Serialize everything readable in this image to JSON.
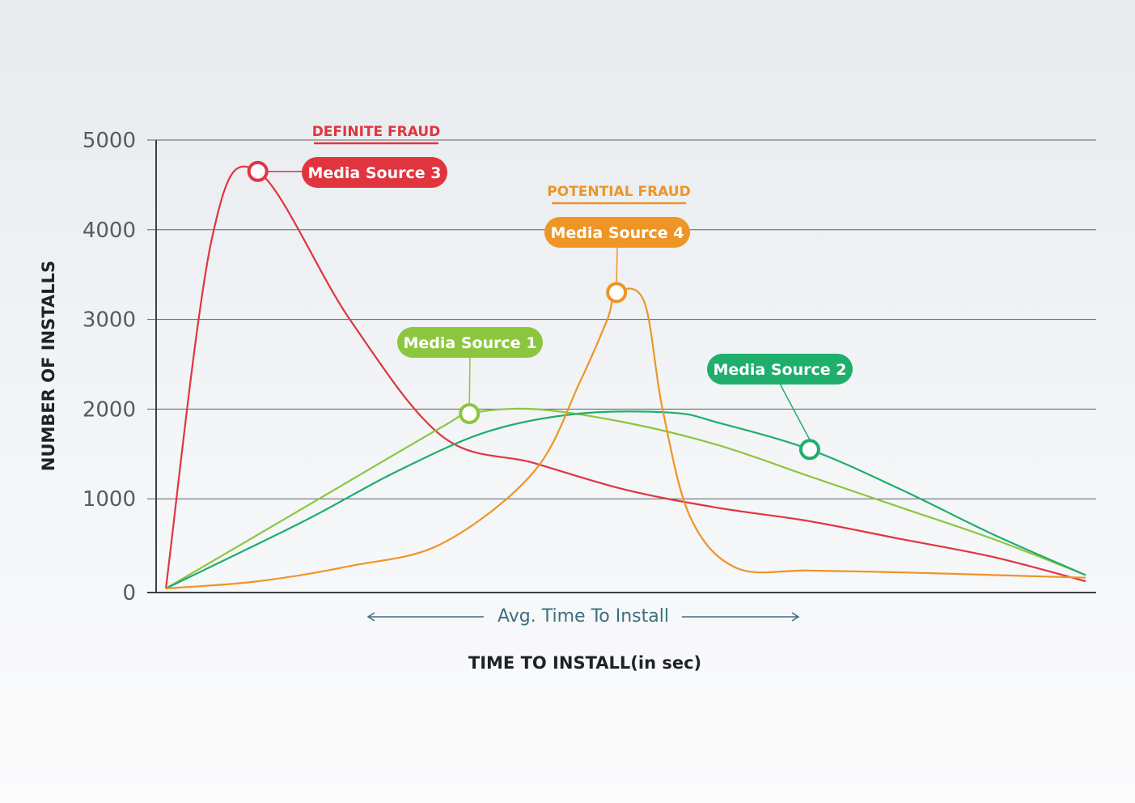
{
  "chart_data": {
    "type": "line",
    "ylabel": "NUMBER OF INSTALLS",
    "xlabel": "TIME TO INSTALL(in sec)",
    "ylim": [
      0,
      5000
    ],
    "yticks": [
      "5000",
      "4000",
      "3000",
      "2000",
      "1000",
      "0"
    ],
    "grid": true,
    "range_annotation": "Avg. Time To Install",
    "categories": [
      {
        "name": "cat-definite",
        "label": "DEFINITE FRAUD",
        "color": "#e0353f"
      },
      {
        "name": "cat-potential",
        "label": "POTENTIAL FRAUD",
        "color": "#ee9526"
      }
    ],
    "series": [
      {
        "name": "Media Source 3",
        "color": "#e0353f",
        "marker_index": 2,
        "points": [
          [
            0,
            0
          ],
          [
            0.05,
            3900
          ],
          [
            0.1,
            4650
          ],
          [
            0.2,
            3000
          ],
          [
            0.3,
            1700
          ],
          [
            0.4,
            1400
          ],
          [
            0.5,
            1100
          ],
          [
            0.6,
            900
          ],
          [
            0.7,
            750
          ],
          [
            0.8,
            550
          ],
          [
            0.9,
            350
          ],
          [
            1.0,
            80
          ]
        ]
      },
      {
        "name": "Media Source 1",
        "color": "#8cc63f",
        "marker_index": 3,
        "points": [
          [
            0,
            0
          ],
          [
            0.15,
            900
          ],
          [
            0.3,
            1800
          ],
          [
            0.33,
            1950
          ],
          [
            0.4,
            2000
          ],
          [
            0.5,
            1850
          ],
          [
            0.6,
            1600
          ],
          [
            0.7,
            1250
          ],
          [
            0.8,
            900
          ],
          [
            0.9,
            550
          ],
          [
            1.0,
            150
          ]
        ]
      },
      {
        "name": "Media Source 2",
        "color": "#1fae6c",
        "marker_index": 7,
        "points": [
          [
            0,
            0
          ],
          [
            0.15,
            750
          ],
          [
            0.25,
            1300
          ],
          [
            0.35,
            1750
          ],
          [
            0.45,
            1950
          ],
          [
            0.55,
            1960
          ],
          [
            0.6,
            1850
          ],
          [
            0.7,
            1550
          ],
          [
            0.8,
            1100
          ],
          [
            0.9,
            600
          ],
          [
            1.0,
            150
          ]
        ]
      },
      {
        "name": "Media Source 4",
        "color": "#ee9526",
        "marker_index": 7,
        "points": [
          [
            0,
            0
          ],
          [
            0.1,
            80
          ],
          [
            0.2,
            250
          ],
          [
            0.3,
            500
          ],
          [
            0.4,
            1300
          ],
          [
            0.45,
            2300
          ],
          [
            0.48,
            3000
          ],
          [
            0.49,
            3300
          ],
          [
            0.52,
            3200
          ],
          [
            0.54,
            2000
          ],
          [
            0.57,
            800
          ],
          [
            0.62,
            230
          ],
          [
            0.7,
            200
          ],
          [
            0.8,
            180
          ],
          [
            0.9,
            150
          ],
          [
            1.0,
            120
          ]
        ]
      }
    ]
  }
}
